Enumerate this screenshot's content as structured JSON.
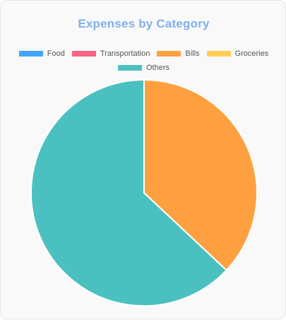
{
  "chart_data": {
    "type": "pie",
    "title": "Expenses by Category",
    "categories": [
      "Food",
      "Transportation",
      "Bills",
      "Groceries",
      "Others"
    ],
    "values": [
      0,
      0,
      37,
      0,
      63
    ],
    "colors": [
      "#42a5f5",
      "#ff6384",
      "#ffa040",
      "#ffcd56",
      "#4bc0c0"
    ],
    "legend_position": "top"
  }
}
